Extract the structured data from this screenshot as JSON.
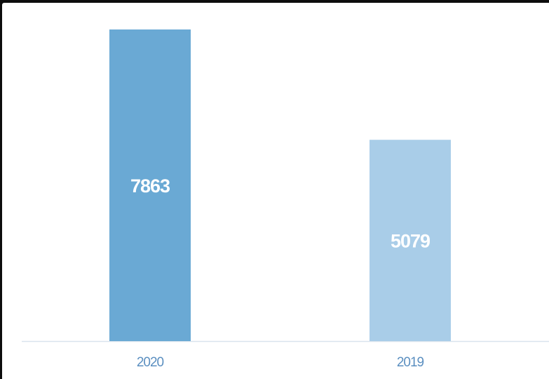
{
  "chart_data": {
    "type": "bar",
    "categories": [
      "2020",
      "2019"
    ],
    "values": [
      7863,
      5079
    ],
    "data_labels": [
      "7863",
      "5079"
    ],
    "colors": [
      "#6aa9d4",
      "#a9cde8"
    ],
    "label_color": "#ffffff",
    "tick_color": "#5b8fc0",
    "axis_color": "#d9e4ee",
    "title": "",
    "xlabel": "",
    "ylabel": "",
    "ylim": [
      0,
      7863
    ],
    "grid": false,
    "legend": "none"
  }
}
